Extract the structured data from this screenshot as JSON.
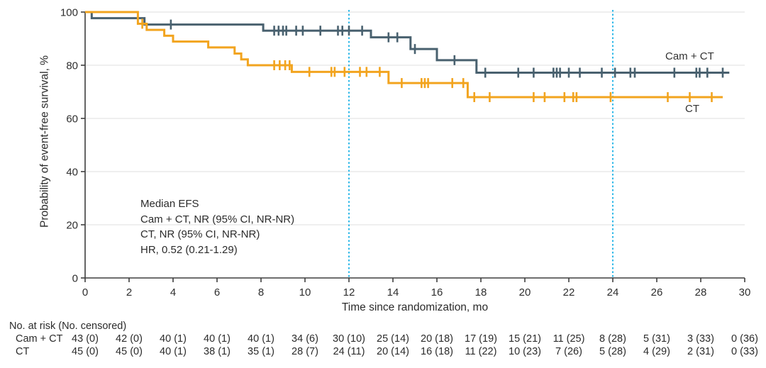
{
  "colors": {
    "series_cam_ct": "#49616F",
    "series_ct": "#F2A41F",
    "reference_line": "#2FB8E8",
    "axis": "#3E3E3E",
    "grid": "#EAEAEA",
    "text": "#2B2B2B"
  },
  "chart_data": {
    "type": "line",
    "variant": "kaplan_meier_step",
    "title": "",
    "xlabel": "Time since randomization, mo",
    "ylabel": "Probability of event-free survival, %",
    "xlim": [
      0,
      30
    ],
    "ylim": [
      0,
      100
    ],
    "xticks": [
      0,
      2,
      4,
      6,
      8,
      10,
      12,
      14,
      16,
      18,
      20,
      22,
      24,
      26,
      28,
      30
    ],
    "yticks": [
      0,
      20,
      40,
      60,
      80,
      100
    ],
    "grid": "horizontal",
    "legend_position": "labels-at-curve-end",
    "reference_lines_x": [
      12,
      24
    ],
    "annotation_lines": [
      "Median EFS",
      "Cam + CT, NR (95% CI, NR-NR)",
      "CT, NR (95% CI, NR-NR)",
      "HR, 0.52 (0.21-1.29)"
    ],
    "series": [
      {
        "name": "Cam + CT",
        "color_key": "series_cam_ct",
        "end_time": 29.3,
        "steps": [
          [
            0,
            100
          ],
          [
            0.3,
            97.7
          ],
          [
            2.7,
            95.3
          ],
          [
            8.1,
            93.0
          ],
          [
            13.0,
            90.5
          ],
          [
            14.8,
            86.1
          ],
          [
            16.0,
            81.9
          ],
          [
            17.8,
            77.2
          ]
        ],
        "censor_marks": [
          [
            3.9,
            95.3
          ],
          [
            8.6,
            93.0
          ],
          [
            8.8,
            93.0
          ],
          [
            9.0,
            93.0
          ],
          [
            9.15,
            93.0
          ],
          [
            9.6,
            93.0
          ],
          [
            9.9,
            93.0
          ],
          [
            10.7,
            93.0
          ],
          [
            11.5,
            93.0
          ],
          [
            11.7,
            93.0
          ],
          [
            12.0,
            93.0
          ],
          [
            12.6,
            93.0
          ],
          [
            13.8,
            90.5
          ],
          [
            14.2,
            90.5
          ],
          [
            15.0,
            86.1
          ],
          [
            16.8,
            81.9
          ],
          [
            18.2,
            77.2
          ],
          [
            19.7,
            77.2
          ],
          [
            20.4,
            77.2
          ],
          [
            21.3,
            77.2
          ],
          [
            21.45,
            77.2
          ],
          [
            21.6,
            77.2
          ],
          [
            22.0,
            77.2
          ],
          [
            22.5,
            77.2
          ],
          [
            23.5,
            77.2
          ],
          [
            24.1,
            77.2
          ],
          [
            24.8,
            77.2
          ],
          [
            25.0,
            77.2
          ],
          [
            26.8,
            77.2
          ],
          [
            27.8,
            77.2
          ],
          [
            27.95,
            77.2
          ],
          [
            28.3,
            77.2
          ],
          [
            29.0,
            77.2
          ]
        ]
      },
      {
        "name": "CT",
        "color_key": "series_ct",
        "end_time": 29.0,
        "steps": [
          [
            0,
            100
          ],
          [
            2.4,
            95.6
          ],
          [
            2.8,
            93.3
          ],
          [
            3.6,
            91.1
          ],
          [
            4.0,
            88.9
          ],
          [
            5.6,
            86.7
          ],
          [
            6.8,
            84.4
          ],
          [
            7.1,
            82.2
          ],
          [
            7.4,
            80.0
          ],
          [
            9.4,
            77.5
          ],
          [
            13.8,
            73.3
          ],
          [
            17.4,
            68.0
          ]
        ],
        "censor_marks": [
          [
            2.6,
            95.6
          ],
          [
            8.6,
            80.0
          ],
          [
            8.85,
            80.0
          ],
          [
            9.1,
            80.0
          ],
          [
            9.3,
            80.0
          ],
          [
            10.2,
            77.5
          ],
          [
            11.2,
            77.5
          ],
          [
            11.35,
            77.5
          ],
          [
            11.8,
            77.5
          ],
          [
            12.5,
            77.5
          ],
          [
            12.8,
            77.5
          ],
          [
            13.4,
            77.5
          ],
          [
            14.4,
            73.3
          ],
          [
            15.3,
            73.3
          ],
          [
            15.45,
            73.3
          ],
          [
            15.6,
            73.3
          ],
          [
            16.7,
            73.3
          ],
          [
            17.2,
            73.3
          ],
          [
            17.7,
            68.0
          ],
          [
            18.4,
            68.0
          ],
          [
            20.4,
            68.0
          ],
          [
            20.9,
            68.0
          ],
          [
            21.8,
            68.0
          ],
          [
            22.2,
            68.0
          ],
          [
            22.35,
            68.0
          ],
          [
            23.9,
            68.0
          ],
          [
            26.5,
            68.0
          ],
          [
            27.5,
            68.0
          ],
          [
            28.5,
            68.0
          ]
        ]
      }
    ]
  },
  "risk_table": {
    "header": "No. at risk (No. censored)",
    "times": [
      0,
      2,
      4,
      6,
      8,
      10,
      12,
      14,
      16,
      18,
      20,
      22,
      24,
      26,
      28,
      30
    ],
    "rows": [
      {
        "label": "Cam + CT",
        "values": [
          "43 (0)",
          "42 (0)",
          "40 (1)",
          "40 (1)",
          "40 (1)",
          "34 (6)",
          "30 (10)",
          "25 (14)",
          "20 (18)",
          "17 (19)",
          "15 (21)",
          "11 (25)",
          "8 (28)",
          "5 (31)",
          "3 (33)",
          "0 (36)"
        ]
      },
      {
        "label": "CT",
        "values": [
          "45 (0)",
          "45 (0)",
          "40 (1)",
          "38 (1)",
          "35 (1)",
          "28 (7)",
          "24 (11)",
          "20 (14)",
          "16 (18)",
          "11 (22)",
          "10 (23)",
          "7 (26)",
          "5 (28)",
          "4 (29)",
          "2 (31)",
          "0 (33)"
        ]
      }
    ]
  }
}
